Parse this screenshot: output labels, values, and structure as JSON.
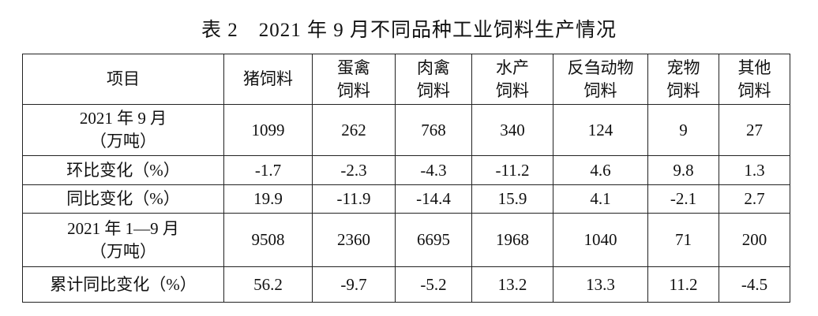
{
  "title": "表 2　2021 年 9 月不同品种工业饲料生产情况",
  "table": {
    "headers": [
      [
        "项目"
      ],
      [
        "猪饲料"
      ],
      [
        "蛋禽",
        "饲料"
      ],
      [
        "肉禽",
        "饲料"
      ],
      [
        "水产",
        "饲料"
      ],
      [
        "反刍动物",
        "饲料"
      ],
      [
        "宠物",
        "饲料"
      ],
      [
        "其他",
        "饲料"
      ]
    ],
    "rows": [
      {
        "label": [
          "2021 年 9 月",
          "（万吨）"
        ],
        "values": [
          1099,
          262,
          768,
          340,
          124,
          9,
          27
        ]
      },
      {
        "label": [
          "环比变化（%）"
        ],
        "values": [
          -1.7,
          -2.3,
          -4.3,
          -11.2,
          4.6,
          9.8,
          1.3
        ]
      },
      {
        "label": [
          "同比变化（%）"
        ],
        "values": [
          19.9,
          -11.9,
          -14.4,
          15.9,
          4.1,
          -2.1,
          2.7
        ]
      },
      {
        "label": [
          "2021 年 1—9 月",
          "（万吨）"
        ],
        "values": [
          9508,
          2360,
          6695,
          1968,
          1040,
          71,
          200
        ]
      },
      {
        "label": [
          "累计同比变化（%）"
        ],
        "values": [
          56.2,
          -9.7,
          -5.2,
          13.2,
          13.3,
          11.2,
          -4.5
        ]
      }
    ]
  }
}
